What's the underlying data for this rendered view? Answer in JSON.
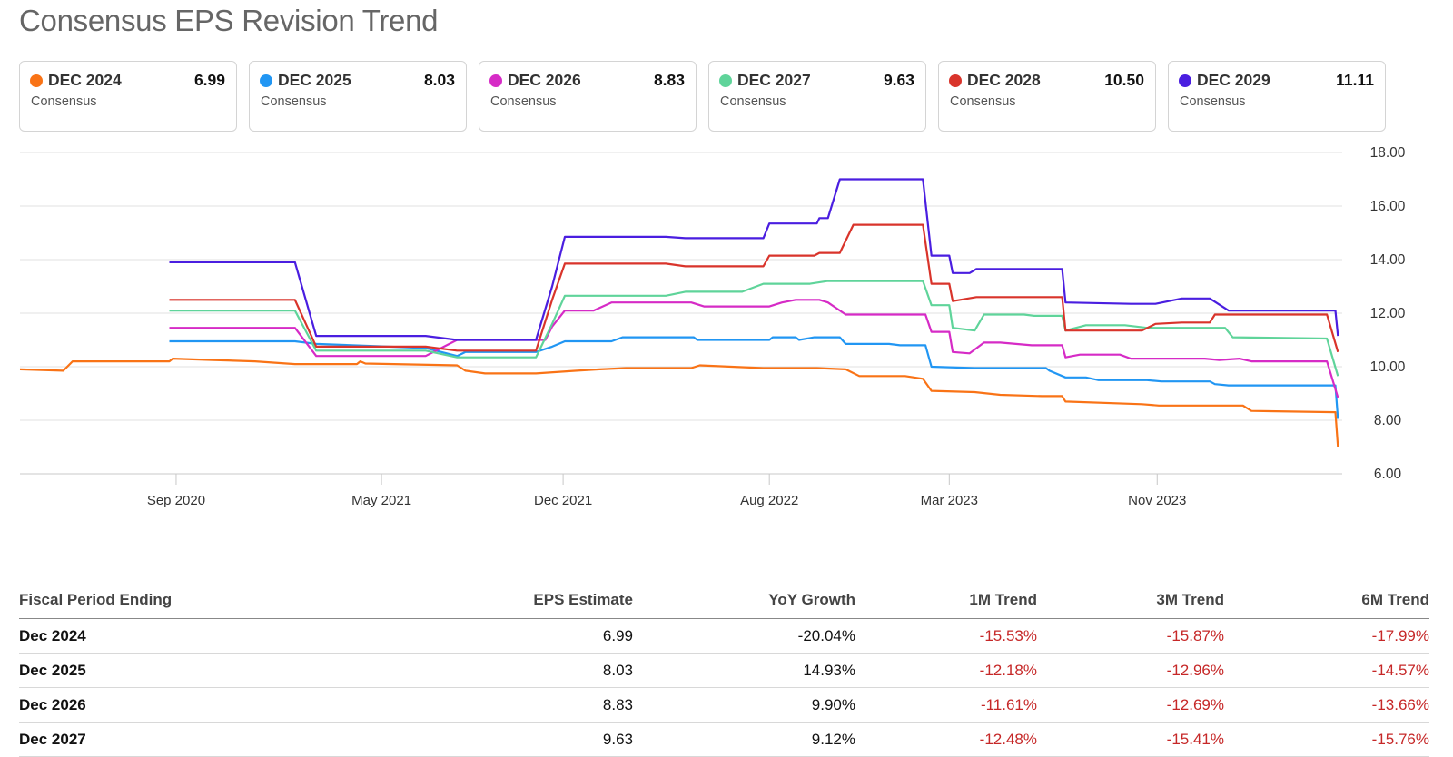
{
  "title": "Consensus EPS Revision Trend",
  "cards": [
    {
      "label": "DEC 2024",
      "value": "6.99",
      "sub": "Consensus",
      "color": "#f97316"
    },
    {
      "label": "DEC 2025",
      "value": "8.03",
      "sub": "Consensus",
      "color": "#2196f3"
    },
    {
      "label": "DEC 2026",
      "value": "8.83",
      "sub": "Consensus",
      "color": "#d62bc6"
    },
    {
      "label": "DEC 2027",
      "value": "9.63",
      "sub": "Consensus",
      "color": "#5fd49a"
    },
    {
      "label": "DEC 2028",
      "value": "10.50",
      "sub": "Consensus",
      "color": "#d9342b"
    },
    {
      "label": "DEC 2029",
      "value": "11.11",
      "sub": "Consensus",
      "color": "#4a1ee0"
    }
  ],
  "chart_data": {
    "type": "line",
    "title": "",
    "xlabel": "",
    "ylabel": "",
    "y_axis_side": "right",
    "ylim": [
      6,
      18
    ],
    "yticks": [
      "6.00",
      "8.00",
      "10.00",
      "12.00",
      "14.00",
      "16.00",
      "18.00"
    ],
    "xlim": [
      "2020-03-01",
      "2024-06-06"
    ],
    "xticks": [
      {
        "label": "Sep 2020",
        "date": "2020-09-01"
      },
      {
        "label": "May 2021",
        "date": "2021-05-01"
      },
      {
        "label": "Dec 2021",
        "date": "2021-12-01"
      },
      {
        "label": "Aug 2022",
        "date": "2022-08-01"
      },
      {
        "label": "Mar 2023",
        "date": "2023-03-01"
      },
      {
        "label": "Nov 2023",
        "date": "2023-11-01"
      }
    ],
    "grid": true,
    "series": [
      {
        "name": "DEC 2024",
        "color": "#f97316",
        "points": [
          [
            "2020-03-01",
            9.9
          ],
          [
            "2020-04-21",
            9.85
          ],
          [
            "2020-05-02",
            10.2
          ],
          [
            "2020-08-24",
            10.2
          ],
          [
            "2020-08-28",
            10.3
          ],
          [
            "2020-10-14",
            10.25
          ],
          [
            "2020-12-03",
            10.2
          ],
          [
            "2021-01-19",
            10.1
          ],
          [
            "2021-04-02",
            10.1
          ],
          [
            "2021-04-06",
            10.2
          ],
          [
            "2021-04-12",
            10.12
          ],
          [
            "2021-07-29",
            10.05
          ],
          [
            "2021-08-08",
            9.85
          ],
          [
            "2021-08-31",
            9.75
          ],
          [
            "2021-10-30",
            9.75
          ],
          [
            "2021-12-17",
            9.85
          ],
          [
            "2022-01-13",
            9.9
          ],
          [
            "2022-02-13",
            9.95
          ],
          [
            "2022-05-01",
            9.95
          ],
          [
            "2022-05-11",
            10.05
          ],
          [
            "2022-07-25",
            9.95
          ],
          [
            "2022-09-26",
            9.95
          ],
          [
            "2022-10-30",
            9.9
          ],
          [
            "2022-11-15",
            9.65
          ],
          [
            "2023-01-08",
            9.65
          ],
          [
            "2023-01-29",
            9.55
          ],
          [
            "2023-02-08",
            9.1
          ],
          [
            "2023-03-31",
            9.05
          ],
          [
            "2023-04-30",
            8.95
          ],
          [
            "2023-06-18",
            8.9
          ],
          [
            "2023-07-12",
            8.9
          ],
          [
            "2023-07-16",
            8.7
          ],
          [
            "2023-10-14",
            8.6
          ],
          [
            "2023-11-03",
            8.55
          ],
          [
            "2024-02-10",
            8.55
          ],
          [
            "2024-02-20",
            8.35
          ],
          [
            "2024-05-29",
            8.3
          ],
          [
            "2024-06-01",
            7.0
          ]
        ]
      },
      {
        "name": "DEC 2025",
        "color": "#2196f3",
        "points": [
          [
            "2020-08-24",
            10.95
          ],
          [
            "2021-01-19",
            10.95
          ],
          [
            "2021-02-13",
            10.85
          ],
          [
            "2021-06-22",
            10.7
          ],
          [
            "2021-07-29",
            10.4
          ],
          [
            "2021-08-08",
            10.55
          ],
          [
            "2021-10-30",
            10.55
          ],
          [
            "2021-11-18",
            10.75
          ],
          [
            "2021-12-03",
            10.95
          ],
          [
            "2022-01-27",
            10.95
          ],
          [
            "2022-02-09",
            11.1
          ],
          [
            "2022-05-04",
            11.1
          ],
          [
            "2022-05-08",
            11.0
          ],
          [
            "2022-08-01",
            11.0
          ],
          [
            "2022-08-05",
            11.1
          ],
          [
            "2022-09-01",
            11.1
          ],
          [
            "2022-09-05",
            11.0
          ],
          [
            "2022-09-23",
            11.1
          ],
          [
            "2022-10-23",
            11.1
          ],
          [
            "2022-10-30",
            10.85
          ],
          [
            "2022-12-20",
            10.85
          ],
          [
            "2023-01-02",
            10.8
          ],
          [
            "2023-02-01",
            10.8
          ],
          [
            "2023-02-08",
            10.0
          ],
          [
            "2023-03-31",
            9.95
          ],
          [
            "2023-06-23",
            9.95
          ],
          [
            "2023-06-27",
            9.85
          ],
          [
            "2023-07-16",
            9.6
          ],
          [
            "2023-08-09",
            9.6
          ],
          [
            "2023-08-24",
            9.5
          ],
          [
            "2023-10-20",
            9.5
          ],
          [
            "2023-11-06",
            9.45
          ],
          [
            "2024-01-02",
            9.45
          ],
          [
            "2024-01-08",
            9.35
          ],
          [
            "2024-01-24",
            9.3
          ],
          [
            "2024-05-29",
            9.3
          ],
          [
            "2024-06-01",
            8.05
          ]
        ]
      },
      {
        "name": "DEC 2026",
        "color": "#d62bc6",
        "points": [
          [
            "2020-08-24",
            11.45
          ],
          [
            "2021-01-19",
            11.45
          ],
          [
            "2021-02-13",
            10.4
          ],
          [
            "2021-06-22",
            10.4
          ],
          [
            "2021-07-29",
            11.0
          ],
          [
            "2021-08-31",
            11.0
          ],
          [
            "2021-11-10",
            11.0
          ],
          [
            "2021-11-18",
            11.5
          ],
          [
            "2021-12-03",
            12.1
          ],
          [
            "2022-01-06",
            12.1
          ],
          [
            "2022-01-27",
            12.4
          ],
          [
            "2022-05-01",
            12.4
          ],
          [
            "2022-05-16",
            12.25
          ],
          [
            "2022-08-01",
            12.25
          ],
          [
            "2022-08-16",
            12.4
          ],
          [
            "2022-09-01",
            12.5
          ],
          [
            "2022-09-29",
            12.5
          ],
          [
            "2022-10-09",
            12.4
          ],
          [
            "2022-10-30",
            11.95
          ],
          [
            "2023-01-02",
            11.95
          ],
          [
            "2023-02-01",
            11.95
          ],
          [
            "2023-02-08",
            11.3
          ],
          [
            "2023-03-01",
            11.3
          ],
          [
            "2023-03-05",
            10.55
          ],
          [
            "2023-03-25",
            10.5
          ],
          [
            "2023-04-11",
            10.9
          ],
          [
            "2023-04-30",
            10.9
          ],
          [
            "2023-06-06",
            10.8
          ],
          [
            "2023-07-12",
            10.8
          ],
          [
            "2023-07-16",
            10.35
          ],
          [
            "2023-08-02",
            10.45
          ],
          [
            "2023-09-18",
            10.45
          ],
          [
            "2023-10-01",
            10.3
          ],
          [
            "2023-11-30",
            10.3
          ],
          [
            "2023-12-27",
            10.3
          ],
          [
            "2024-01-13",
            10.25
          ],
          [
            "2024-02-06",
            10.3
          ],
          [
            "2024-02-20",
            10.2
          ],
          [
            "2024-05-19",
            10.2
          ],
          [
            "2024-06-01",
            8.85
          ]
        ]
      },
      {
        "name": "DEC 2027",
        "color": "#5fd49a",
        "points": [
          [
            "2020-08-24",
            12.1
          ],
          [
            "2021-01-19",
            12.1
          ],
          [
            "2021-02-13",
            10.6
          ],
          [
            "2021-06-22",
            10.6
          ],
          [
            "2021-07-29",
            10.35
          ],
          [
            "2021-08-31",
            10.35
          ],
          [
            "2021-10-30",
            10.35
          ],
          [
            "2021-11-18",
            11.6
          ],
          [
            "2021-12-03",
            12.65
          ],
          [
            "2022-04-01",
            12.65
          ],
          [
            "2022-04-24",
            12.8
          ],
          [
            "2022-06-30",
            12.8
          ],
          [
            "2022-07-25",
            13.1
          ],
          [
            "2022-09-18",
            13.1
          ],
          [
            "2022-10-09",
            13.2
          ],
          [
            "2022-11-27",
            13.2
          ],
          [
            "2023-01-08",
            13.2
          ],
          [
            "2023-01-29",
            13.2
          ],
          [
            "2023-02-08",
            12.3
          ],
          [
            "2023-03-01",
            12.3
          ],
          [
            "2023-03-05",
            11.45
          ],
          [
            "2023-03-31",
            11.35
          ],
          [
            "2023-04-11",
            11.95
          ],
          [
            "2023-05-28",
            11.95
          ],
          [
            "2023-06-09",
            11.9
          ],
          [
            "2023-07-12",
            11.9
          ],
          [
            "2023-07-16",
            11.35
          ],
          [
            "2023-08-09",
            11.55
          ],
          [
            "2023-09-24",
            11.55
          ],
          [
            "2023-10-20",
            11.45
          ],
          [
            "2023-11-30",
            11.45
          ],
          [
            "2024-01-20",
            11.45
          ],
          [
            "2024-01-29",
            11.1
          ],
          [
            "2024-05-19",
            11.05
          ],
          [
            "2024-06-01",
            9.65
          ]
        ]
      },
      {
        "name": "DEC 2028",
        "color": "#d9342b",
        "points": [
          [
            "2020-08-24",
            12.5
          ],
          [
            "2021-01-19",
            12.5
          ],
          [
            "2021-02-13",
            10.75
          ],
          [
            "2021-06-22",
            10.75
          ],
          [
            "2021-07-29",
            10.6
          ],
          [
            "2021-10-30",
            10.6
          ],
          [
            "2021-11-18",
            12.5
          ],
          [
            "2021-12-03",
            13.85
          ],
          [
            "2022-04-01",
            13.85
          ],
          [
            "2022-04-24",
            13.75
          ],
          [
            "2022-07-25",
            13.75
          ],
          [
            "2022-08-01",
            14.15
          ],
          [
            "2022-09-23",
            14.15
          ],
          [
            "2022-09-29",
            14.25
          ],
          [
            "2022-10-23",
            14.25
          ],
          [
            "2022-11-08",
            15.3
          ],
          [
            "2023-01-02",
            15.3
          ],
          [
            "2023-01-29",
            15.3
          ],
          [
            "2023-02-08",
            13.1
          ],
          [
            "2023-03-01",
            13.1
          ],
          [
            "2023-03-05",
            12.45
          ],
          [
            "2023-04-02",
            12.6
          ],
          [
            "2023-05-08",
            12.6
          ],
          [
            "2023-07-12",
            12.6
          ],
          [
            "2023-07-16",
            11.35
          ],
          [
            "2023-10-14",
            11.35
          ],
          [
            "2023-10-30",
            11.6
          ],
          [
            "2023-11-30",
            11.65
          ],
          [
            "2024-01-02",
            11.65
          ],
          [
            "2024-01-08",
            11.95
          ],
          [
            "2024-05-19",
            11.95
          ],
          [
            "2024-06-01",
            10.55
          ]
        ]
      },
      {
        "name": "DEC 2029",
        "color": "#4a1ee0",
        "points": [
          [
            "2020-08-24",
            13.9
          ],
          [
            "2021-01-19",
            13.9
          ],
          [
            "2021-02-13",
            11.15
          ],
          [
            "2021-06-22",
            11.15
          ],
          [
            "2021-07-29",
            11.0
          ],
          [
            "2021-08-31",
            11.0
          ],
          [
            "2021-10-30",
            11.0
          ],
          [
            "2021-11-18",
            13.0
          ],
          [
            "2021-12-03",
            14.85
          ],
          [
            "2022-04-01",
            14.85
          ],
          [
            "2022-04-24",
            14.8
          ],
          [
            "2022-07-25",
            14.8
          ],
          [
            "2022-08-01",
            15.35
          ],
          [
            "2022-09-26",
            15.35
          ],
          [
            "2022-09-29",
            15.55
          ],
          [
            "2022-10-09",
            15.55
          ],
          [
            "2022-10-23",
            17.0
          ],
          [
            "2023-01-02",
            17.0
          ],
          [
            "2023-01-29",
            17.0
          ],
          [
            "2023-02-08",
            14.15
          ],
          [
            "2023-03-01",
            14.15
          ],
          [
            "2023-03-05",
            13.5
          ],
          [
            "2023-03-25",
            13.5
          ],
          [
            "2023-04-02",
            13.65
          ],
          [
            "2023-05-08",
            13.65
          ],
          [
            "2023-07-12",
            13.65
          ],
          [
            "2023-07-16",
            12.4
          ],
          [
            "2023-10-01",
            12.35
          ],
          [
            "2023-10-30",
            12.35
          ],
          [
            "2023-11-30",
            12.55
          ],
          [
            "2024-01-02",
            12.55
          ],
          [
            "2024-01-24",
            12.1
          ],
          [
            "2024-05-29",
            12.1
          ],
          [
            "2024-06-01",
            11.15
          ]
        ]
      }
    ]
  },
  "table": {
    "headers": [
      "Fiscal Period Ending",
      "EPS Estimate",
      "YoY Growth",
      "1M Trend",
      "3M Trend",
      "6M Trend"
    ],
    "rows": [
      [
        "Dec 2024",
        "6.99",
        "-20.04%",
        "-15.53%",
        "-15.87%",
        "-17.99%"
      ],
      [
        "Dec 2025",
        "8.03",
        "14.93%",
        "-12.18%",
        "-12.96%",
        "-14.57%"
      ],
      [
        "Dec 2026",
        "8.83",
        "9.90%",
        "-11.61%",
        "-12.69%",
        "-13.66%"
      ],
      [
        "Dec 2027",
        "9.63",
        "9.12%",
        "-12.48%",
        "-15.41%",
        "-15.76%"
      ]
    ]
  }
}
